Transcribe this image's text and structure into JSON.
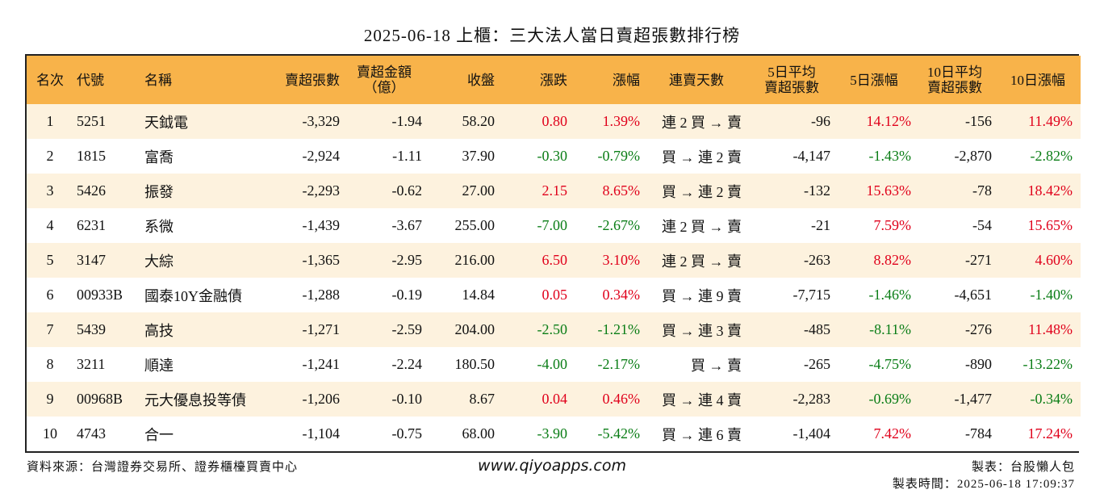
{
  "title": "2025-06-18 上櫃：三大法人當日賣超張數排行榜",
  "colors": {
    "header_bg": "#f8b34a",
    "odd_row_bg": "#fdf2de",
    "positive": "#e0001b",
    "negative": "#0a7d16"
  },
  "columns": [
    {
      "key": "rank",
      "label": "名次"
    },
    {
      "key": "code",
      "label": "代號"
    },
    {
      "key": "name",
      "label": "名稱"
    },
    {
      "key": "net_lots",
      "label": "賣超張數"
    },
    {
      "key": "amount",
      "label": "賣超金額\n（億）"
    },
    {
      "key": "close",
      "label": "收盤"
    },
    {
      "key": "change",
      "label": "漲跌"
    },
    {
      "key": "pct",
      "label": "漲幅"
    },
    {
      "key": "streak",
      "label": "連賣天數"
    },
    {
      "key": "avg5",
      "label": "5日平均\n賣超張數"
    },
    {
      "key": "pct5",
      "label": "5日漲幅"
    },
    {
      "key": "avg10",
      "label": "10日平均\n賣超張數"
    },
    {
      "key": "pct10",
      "label": "10日漲幅"
    }
  ],
  "rows": [
    {
      "rank": "1",
      "code": "5251",
      "name": "天鉞電",
      "net_lots": "-3,329",
      "amount": "-1.94",
      "close": "58.20",
      "change": "0.80",
      "pct": "1.39%",
      "streak": "連 2 買 → 賣",
      "avg5": "-96",
      "pct5": "14.12%",
      "avg10": "-156",
      "pct10": "11.49%"
    },
    {
      "rank": "2",
      "code": "1815",
      "name": "富喬",
      "net_lots": "-2,924",
      "amount": "-1.11",
      "close": "37.90",
      "change": "-0.30",
      "pct": "-0.79%",
      "streak": "買 → 連 2 賣",
      "avg5": "-4,147",
      "pct5": "-1.43%",
      "avg10": "-2,870",
      "pct10": "-2.82%"
    },
    {
      "rank": "3",
      "code": "5426",
      "name": "振發",
      "net_lots": "-2,293",
      "amount": "-0.62",
      "close": "27.00",
      "change": "2.15",
      "pct": "8.65%",
      "streak": "買 → 連 2 賣",
      "avg5": "-132",
      "pct5": "15.63%",
      "avg10": "-78",
      "pct10": "18.42%"
    },
    {
      "rank": "4",
      "code": "6231",
      "name": "系微",
      "net_lots": "-1,439",
      "amount": "-3.67",
      "close": "255.00",
      "change": "-7.00",
      "pct": "-2.67%",
      "streak": "連 2 買 → 賣",
      "avg5": "-21",
      "pct5": "7.59%",
      "avg10": "-54",
      "pct10": "15.65%"
    },
    {
      "rank": "5",
      "code": "3147",
      "name": "大綜",
      "net_lots": "-1,365",
      "amount": "-2.95",
      "close": "216.00",
      "change": "6.50",
      "pct": "3.10%",
      "streak": "連 2 買 → 賣",
      "avg5": "-263",
      "pct5": "8.82%",
      "avg10": "-271",
      "pct10": "4.60%"
    },
    {
      "rank": "6",
      "code": "00933B",
      "name": "國泰10Y金融債",
      "net_lots": "-1,288",
      "amount": "-0.19",
      "close": "14.84",
      "change": "0.05",
      "pct": "0.34%",
      "streak": "買 → 連 9 賣",
      "avg5": "-7,715",
      "pct5": "-1.46%",
      "avg10": "-4,651",
      "pct10": "-1.40%"
    },
    {
      "rank": "7",
      "code": "5439",
      "name": "高技",
      "net_lots": "-1,271",
      "amount": "-2.59",
      "close": "204.00",
      "change": "-2.50",
      "pct": "-1.21%",
      "streak": "買 → 連 3 賣",
      "avg5": "-485",
      "pct5": "-8.11%",
      "avg10": "-276",
      "pct10": "11.48%"
    },
    {
      "rank": "8",
      "code": "3211",
      "name": "順達",
      "net_lots": "-1,241",
      "amount": "-2.24",
      "close": "180.50",
      "change": "-4.00",
      "pct": "-2.17%",
      "streak": "買 → 賣",
      "avg5": "-265",
      "pct5": "-4.75%",
      "avg10": "-890",
      "pct10": "-13.22%"
    },
    {
      "rank": "9",
      "code": "00968B",
      "name": "元大優息投等債",
      "net_lots": "-1,206",
      "amount": "-0.10",
      "close": "8.67",
      "change": "0.04",
      "pct": "0.46%",
      "streak": "買 → 連 4 賣",
      "avg5": "-2,283",
      "pct5": "-0.69%",
      "avg10": "-1,477",
      "pct10": "-0.34%"
    },
    {
      "rank": "10",
      "code": "4743",
      "name": "合一",
      "net_lots": "-1,104",
      "amount": "-0.75",
      "close": "68.00",
      "change": "-3.90",
      "pct": "-5.42%",
      "streak": "買 → 連 6 賣",
      "avg5": "-1,404",
      "pct5": "7.42%",
      "avg10": "-784",
      "pct10": "17.24%"
    }
  ],
  "footer": {
    "source": "資料來源：台灣證券交易所、證券櫃檯買賣中心",
    "site": "www.qiyoapps.com",
    "maker": "製表：台股懶人包",
    "time": "製表時間：2025-06-18 17:09:37"
  }
}
